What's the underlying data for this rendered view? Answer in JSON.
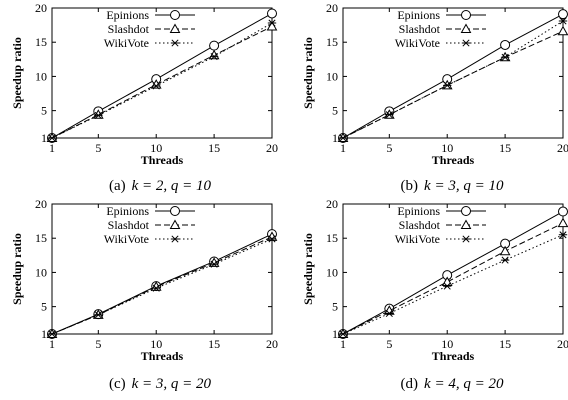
{
  "chart_data": [
    {
      "type": "line",
      "caption": {
        "label": "(a)",
        "params": "k = 2, q = 10"
      },
      "xlabel": "Threads",
      "ylabel": "Speedup ratio",
      "x": [
        1,
        5,
        10,
        15,
        20
      ],
      "xticks": [
        "1",
        "5",
        "10",
        "15",
        "20"
      ],
      "yticks": [
        "1",
        "5",
        "10",
        "15",
        "20"
      ],
      "xlim": [
        1,
        20
      ],
      "ylim": [
        1,
        20
      ],
      "grid": false,
      "legend_position": "top-left",
      "series": [
        {
          "name": "Epinions",
          "values": [
            1,
            4.9,
            9.6,
            14.5,
            19.2
          ],
          "style": "solid",
          "marker": "circle"
        },
        {
          "name": "Slashdot",
          "values": [
            1,
            4.4,
            8.8,
            13.1,
            17.3
          ],
          "style": "dashed",
          "marker": "triangle"
        },
        {
          "name": "WikiVote",
          "values": [
            1,
            4.3,
            8.6,
            12.9,
            17.8
          ],
          "style": "dotted",
          "marker": "star"
        }
      ]
    },
    {
      "type": "line",
      "caption": {
        "label": "(b)",
        "params": "k = 3, q = 10"
      },
      "xlabel": "Threads",
      "ylabel": "Speedup ratio",
      "x": [
        1,
        5,
        10,
        15,
        20
      ],
      "xticks": [
        "1",
        "5",
        "10",
        "15",
        "20"
      ],
      "yticks": [
        "1",
        "5",
        "10",
        "15",
        "20"
      ],
      "xlim": [
        1,
        20
      ],
      "ylim": [
        1,
        20
      ],
      "grid": false,
      "legend_position": "top-left",
      "series": [
        {
          "name": "Epinions",
          "values": [
            1,
            4.9,
            9.6,
            14.6,
            19.1
          ],
          "style": "solid",
          "marker": "circle"
        },
        {
          "name": "Slashdot",
          "values": [
            1,
            4.4,
            8.7,
            12.8,
            16.6
          ],
          "style": "dashed",
          "marker": "triangle"
        },
        {
          "name": "WikiVote",
          "values": [
            1,
            4.4,
            8.7,
            12.8,
            18.1
          ],
          "style": "dotted",
          "marker": "star"
        }
      ]
    },
    {
      "type": "line",
      "caption": {
        "label": "(c)",
        "params": "k = 3, q = 20"
      },
      "xlabel": "Threads",
      "ylabel": "Speedup ratio",
      "x": [
        1,
        5,
        10,
        15,
        20
      ],
      "xticks": [
        "1",
        "5",
        "10",
        "15",
        "20"
      ],
      "yticks": [
        "1",
        "5",
        "10",
        "15",
        "20"
      ],
      "xlim": [
        1,
        20
      ],
      "ylim": [
        1,
        20
      ],
      "grid": false,
      "legend_position": "top-left",
      "series": [
        {
          "name": "Epinions",
          "values": [
            1,
            3.9,
            8.0,
            11.6,
            15.6
          ],
          "style": "solid",
          "marker": "circle"
        },
        {
          "name": "Slashdot",
          "values": [
            1,
            3.8,
            7.9,
            11.4,
            15.2
          ],
          "style": "dashed",
          "marker": "triangle"
        },
        {
          "name": "WikiVote",
          "values": [
            1,
            3.8,
            7.7,
            11.2,
            14.9
          ],
          "style": "dotted",
          "marker": "star"
        }
      ]
    },
    {
      "type": "line",
      "caption": {
        "label": "(d)",
        "params": "k = 4, q = 20"
      },
      "xlabel": "Threads",
      "ylabel": "Speedup ratio",
      "x": [
        1,
        5,
        10,
        15,
        20
      ],
      "xticks": [
        "1",
        "5",
        "10",
        "15",
        "20"
      ],
      "yticks": [
        "1",
        "5",
        "10",
        "15",
        "20"
      ],
      "xlim": [
        1,
        20
      ],
      "ylim": [
        1,
        20
      ],
      "grid": false,
      "legend_position": "top-left",
      "series": [
        {
          "name": "Epinions",
          "values": [
            1,
            4.7,
            9.6,
            14.2,
            18.9
          ],
          "style": "solid",
          "marker": "circle"
        },
        {
          "name": "Slashdot",
          "values": [
            1,
            4.4,
            8.6,
            13.1,
            17.2
          ],
          "style": "dashed",
          "marker": "triangle"
        },
        {
          "name": "WikiVote",
          "values": [
            1,
            4.0,
            8.0,
            11.8,
            15.5
          ],
          "style": "dotted",
          "marker": "star"
        }
      ]
    }
  ]
}
